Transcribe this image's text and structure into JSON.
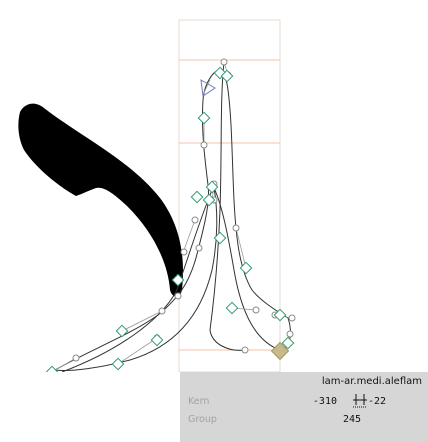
{
  "glyph": {
    "name": "lam-ar.medi.aleflam",
    "kern_label": "Kern",
    "group_label": "Group",
    "kern_left": "-310",
    "kern_right": "-22",
    "advance_width": "245",
    "kern_icon": "kerning-pair-icon"
  },
  "colors": {
    "metrics_line": "#f3c4a8",
    "bounds_line": "#e8d9cc",
    "outline": "#333333",
    "on_curve_point": "#2f9d6e",
    "off_curve_point": "#8a8a8a",
    "start_point": "#6a7cc0",
    "selected_point": "#c8b98a",
    "neighbor_glyph": "#000000",
    "panel_bg": "#d6d6d6"
  }
}
